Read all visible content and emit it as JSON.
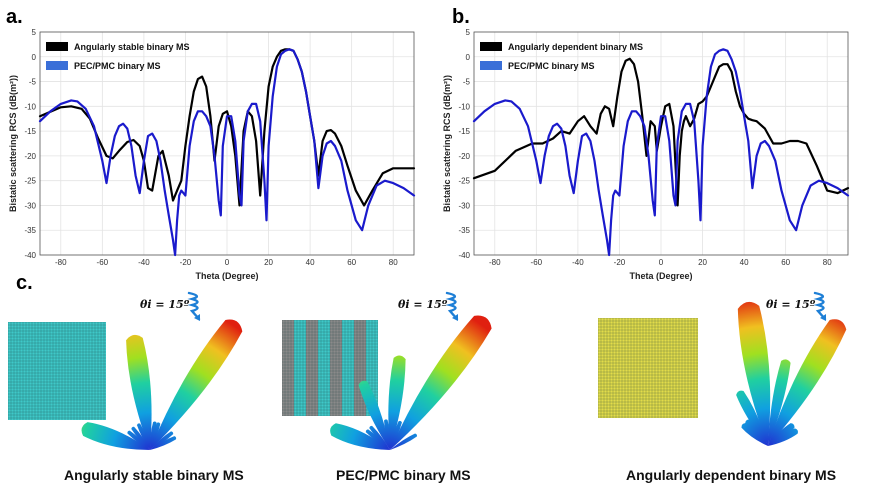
{
  "panel_labels": {
    "a": "a.",
    "b": "b.",
    "c": "c."
  },
  "chart_data": [
    {
      "type": "line",
      "id": "a",
      "title": "",
      "xlabel": "Theta (Degree)",
      "ylabel": "Bistatic scattering RCS (dB(m²))",
      "xlim": [
        -90,
        90
      ],
      "ylim": [
        -40,
        5
      ],
      "xticks": [
        -80,
        -60,
        -40,
        -20,
        0,
        20,
        40,
        60,
        80
      ],
      "yticks": [
        5,
        0,
        -5,
        -10,
        -15,
        -20,
        -25,
        -30,
        -35,
        -40
      ],
      "grid": true,
      "legend": "top-left",
      "series": [
        {
          "name": "Angularly stable binary MS",
          "color": "#000000",
          "x": [
            -90,
            -80,
            -75,
            -70,
            -66,
            -62,
            -58,
            -55,
            -52,
            -48,
            -45,
            -42,
            -40,
            -38,
            -36,
            -33,
            -31,
            -28,
            -26,
            -24,
            -22,
            -20,
            -18,
            -16,
            -14,
            -12,
            -10,
            -8,
            -6,
            -4,
            -2,
            0,
            2,
            4,
            6,
            8,
            10,
            12,
            14,
            16,
            18,
            20,
            22,
            24,
            26,
            28,
            30,
            32,
            34,
            36,
            38,
            40,
            42,
            44,
            46,
            48,
            50,
            52,
            55,
            58,
            62,
            66,
            70,
            75,
            80,
            85,
            90
          ],
          "y": [
            -12,
            -10.2,
            -10,
            -10.5,
            -12.5,
            -16.5,
            -20,
            -20.5,
            -19,
            -17.2,
            -16.8,
            -18,
            -21,
            -26.5,
            -27,
            -20,
            -19,
            -24,
            -29,
            -27,
            -25,
            -18,
            -12,
            -7,
            -4.5,
            -4,
            -6,
            -12,
            -21,
            -14,
            -11.5,
            -11,
            -14,
            -20,
            -30,
            -15,
            -11,
            -12,
            -17,
            -28,
            -15,
            -6,
            -2,
            0,
            1.2,
            1.5,
            1.5,
            1.2,
            -0.5,
            -3,
            -7,
            -12,
            -17,
            -24,
            -17,
            -15,
            -14.8,
            -15.5,
            -18,
            -22,
            -27,
            -30,
            -27,
            -23.5,
            -22.5,
            -22.5,
            -22.5
          ]
        },
        {
          "name": "PEC/PMC binary MS",
          "color": "#1a1acc",
          "x": [
            -90,
            -85,
            -80,
            -75,
            -72,
            -68,
            -64,
            -60,
            -58,
            -56,
            -54,
            -52,
            -50,
            -48,
            -46,
            -44,
            -42,
            -40,
            -38,
            -36,
            -34,
            -32,
            -30,
            -28,
            -26,
            -25,
            -24,
            -23,
            -22,
            -21,
            -20,
            -18,
            -16,
            -14,
            -12,
            -10,
            -8,
            -6,
            -4,
            -3,
            -2,
            0,
            2,
            4,
            6,
            7,
            8,
            10,
            12,
            14,
            16,
            18,
            19,
            20,
            22,
            24,
            26,
            28,
            30,
            32,
            34,
            36,
            38,
            40,
            42,
            44,
            46,
            48,
            50,
            52,
            55,
            58,
            62,
            65,
            68,
            72,
            76,
            80,
            85,
            90
          ],
          "y": [
            -13,
            -11,
            -9.5,
            -8.8,
            -9,
            -10.5,
            -14,
            -21,
            -25.5,
            -20,
            -16,
            -14,
            -13.5,
            -14.5,
            -18,
            -24,
            -27.5,
            -21,
            -16,
            -15.5,
            -17,
            -21,
            -27,
            -32,
            -37,
            -40,
            -33,
            -28,
            -27,
            -27.5,
            -28,
            -18,
            -13,
            -11,
            -11,
            -12,
            -14,
            -20,
            -29,
            -32,
            -18,
            -12,
            -12,
            -17,
            -28,
            -30,
            -17,
            -11,
            -9.5,
            -9.5,
            -13,
            -25,
            -33,
            -18,
            -8,
            -2,
            0.5,
            1.2,
            1.5,
            1.2,
            -0.5,
            -3,
            -7,
            -12,
            -17,
            -26.5,
            -20,
            -17.5,
            -17,
            -18,
            -21,
            -27,
            -33,
            -35,
            -30,
            -26,
            -25,
            -25.5,
            -26.5,
            -28
          ]
        }
      ]
    },
    {
      "type": "line",
      "id": "b",
      "title": "",
      "xlabel": "Theta (Degree)",
      "ylabel": "Bistatic scattering RCS (dB(m²))",
      "xlim": [
        -90,
        90
      ],
      "ylim": [
        -40,
        5
      ],
      "xticks": [
        -80,
        -60,
        -40,
        -20,
        0,
        20,
        40,
        60,
        80
      ],
      "yticks": [
        5,
        0,
        -5,
        -10,
        -15,
        -20,
        -25,
        -30,
        -35,
        -40
      ],
      "grid": true,
      "legend": "top-left",
      "series": [
        {
          "name": "Angularly dependent binary MS",
          "color": "#000000",
          "x": [
            -90,
            -80,
            -70,
            -62,
            -57,
            -52,
            -48,
            -44,
            -40,
            -37,
            -34,
            -31,
            -29,
            -27,
            -25,
            -23,
            -21,
            -19,
            -17,
            -15,
            -13,
            -11,
            -9,
            -7,
            -5,
            -3,
            -2,
            0,
            2,
            4,
            6,
            8,
            9,
            10,
            11,
            12,
            14,
            16,
            18,
            20,
            22,
            24,
            26,
            28,
            30,
            32,
            34,
            36,
            38,
            40,
            42,
            44,
            46,
            50,
            54,
            58,
            62,
            66,
            70,
            75,
            80,
            85,
            90
          ],
          "y": [
            -24.5,
            -23,
            -19,
            -17.5,
            -17.5,
            -16.5,
            -15,
            -15.5,
            -13,
            -12,
            -14,
            -15.5,
            -11.5,
            -10,
            -10.5,
            -14,
            -8,
            -3,
            -0.8,
            -0.4,
            -1.5,
            -5,
            -12,
            -20,
            -13,
            -14,
            -19,
            -14,
            -10,
            -9.5,
            -14,
            -30,
            -20,
            -15,
            -13,
            -12,
            -14,
            -12.5,
            -9.5,
            -9,
            -8,
            -6,
            -4,
            -2,
            -1.5,
            -1.5,
            -3,
            -7,
            -10,
            -11.5,
            -12.5,
            -12.8,
            -13,
            -14.5,
            -17.5,
            -17.5,
            -17,
            -17,
            -17.5,
            -22,
            -27,
            -27.5,
            -26.5
          ]
        },
        {
          "name": "PEC/PMC binary MS",
          "color": "#1a1acc",
          "x": [
            -90,
            -85,
            -80,
            -75,
            -72,
            -68,
            -64,
            -60,
            -58,
            -56,
            -54,
            -52,
            -50,
            -48,
            -46,
            -44,
            -42,
            -40,
            -38,
            -36,
            -34,
            -32,
            -30,
            -28,
            -26,
            -25,
            -24,
            -23,
            -22,
            -21,
            -20,
            -18,
            -16,
            -14,
            -12,
            -10,
            -8,
            -6,
            -4,
            -3,
            -2,
            0,
            2,
            4,
            6,
            7,
            8,
            10,
            12,
            14,
            16,
            18,
            19,
            20,
            22,
            24,
            26,
            28,
            30,
            32,
            34,
            36,
            38,
            40,
            42,
            44,
            46,
            48,
            50,
            52,
            55,
            58,
            62,
            65,
            68,
            72,
            76,
            80,
            85,
            90
          ],
          "y": [
            -13,
            -11,
            -9.5,
            -8.8,
            -9,
            -10.5,
            -14,
            -21,
            -25.5,
            -20,
            -16,
            -14,
            -13.5,
            -14.5,
            -18,
            -24,
            -27.5,
            -21,
            -16,
            -15.5,
            -17,
            -21,
            -27,
            -32,
            -37,
            -40,
            -33,
            -28,
            -27,
            -27.5,
            -28,
            -18,
            -13,
            -11,
            -11,
            -12,
            -14,
            -20,
            -29,
            -32,
            -18,
            -12,
            -12,
            -17,
            -28,
            -30,
            -17,
            -11,
            -9.5,
            -9.5,
            -13,
            -25,
            -33,
            -18,
            -8,
            -2,
            0.5,
            1.2,
            1.5,
            1.2,
            -0.5,
            -3,
            -7,
            -12,
            -17,
            -26.5,
            -20,
            -17.5,
            -17,
            -18,
            -21,
            -27,
            -33,
            -35,
            -30,
            -26,
            -25,
            -25.5,
            -26.5,
            -28
          ]
        }
      ]
    }
  ],
  "panel_c": {
    "items": [
      {
        "caption": "Angularly stable binary MS",
        "theta": "θi = 15º"
      },
      {
        "caption": "PEC/PMC binary MS",
        "theta": "θi = 15º"
      },
      {
        "caption": "Angularly dependent binary MS",
        "theta": "θi = 15º"
      }
    ]
  },
  "colors": {
    "black_line": "#000000",
    "blue_line": "#1a1acc",
    "legend_blue": "#3a6fd8",
    "wave": "#1e7fd6",
    "grid_cyan": "#3fc8c8",
    "grid_yellow": "#e2dc4a",
    "grid_gray": "#8a8a8a"
  }
}
